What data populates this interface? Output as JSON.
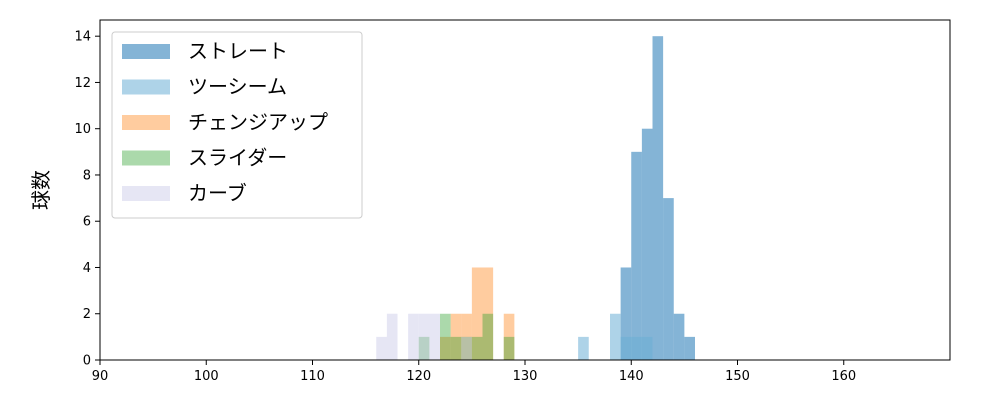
{
  "chart_data": {
    "type": "bar",
    "subtype": "overlaid-histogram",
    "title": "",
    "xlabel": "",
    "ylabel": "球数",
    "xlim": [
      90,
      170
    ],
    "ylim": [
      0,
      14.7
    ],
    "xticks": [
      90,
      100,
      110,
      120,
      130,
      140,
      150,
      160
    ],
    "yticks": [
      0,
      2,
      4,
      6,
      8,
      10,
      12,
      14
    ],
    "grid": false,
    "legend_position": "top-left",
    "bin_width": 1,
    "series": [
      {
        "name": "ストレート",
        "color": "#1f77b4",
        "opacity": 0.55,
        "bins": [
          {
            "x0": 139,
            "count": 4
          },
          {
            "x0": 140,
            "count": 9
          },
          {
            "x0": 141,
            "count": 10
          },
          {
            "x0": 142,
            "count": 14
          },
          {
            "x0": 143,
            "count": 7
          },
          {
            "x0": 144,
            "count": 2
          },
          {
            "x0": 145,
            "count": 1
          }
        ]
      },
      {
        "name": "ツーシーム",
        "color": "#6baed6",
        "opacity": 0.55,
        "bins": [
          {
            "x0": 135,
            "count": 1
          },
          {
            "x0": 138,
            "count": 2
          },
          {
            "x0": 139,
            "count": 1
          },
          {
            "x0": 140,
            "count": 1
          },
          {
            "x0": 141,
            "count": 1
          }
        ]
      },
      {
        "name": "チェンジアップ",
        "color": "#ff7f0e",
        "opacity": 0.4,
        "bins": [
          {
            "x0": 122,
            "count": 1
          },
          {
            "x0": 123,
            "count": 2
          },
          {
            "x0": 124,
            "count": 2
          },
          {
            "x0": 125,
            "count": 4
          },
          {
            "x0": 126,
            "count": 4
          },
          {
            "x0": 128,
            "count": 2
          }
        ]
      },
      {
        "name": "スライダー",
        "color": "#2ca02c",
        "opacity": 0.4,
        "bins": [
          {
            "x0": 120,
            "count": 1
          },
          {
            "x0": 122,
            "count": 2
          },
          {
            "x0": 123,
            "count": 1
          },
          {
            "x0": 124,
            "count": 1
          },
          {
            "x0": 125,
            "count": 1
          },
          {
            "x0": 126,
            "count": 2
          },
          {
            "x0": 128,
            "count": 1
          }
        ]
      },
      {
        "name": "カーブ",
        "color": "#c7c7e6",
        "opacity": 0.45,
        "bins": [
          {
            "x0": 116,
            "count": 1
          },
          {
            "x0": 117,
            "count": 2
          },
          {
            "x0": 119,
            "count": 2
          },
          {
            "x0": 120,
            "count": 2
          },
          {
            "x0": 121,
            "count": 2
          },
          {
            "x0": 124,
            "count": 1
          }
        ]
      }
    ]
  }
}
